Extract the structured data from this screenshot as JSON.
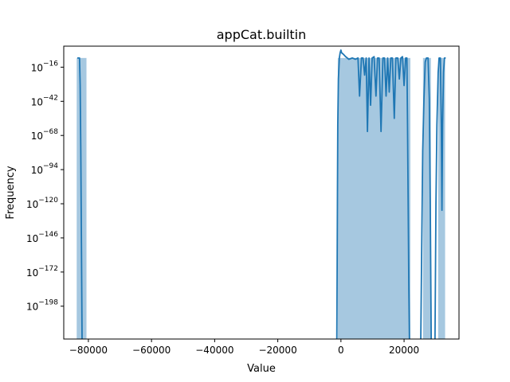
{
  "chart_data": {
    "type": "area",
    "title": "appCat.builtin",
    "xlabel": "Value",
    "ylabel": "Frequency",
    "xlim": [
      -87800,
      37400
    ],
    "y_log_exponent_range": [
      -223,
      0
    ],
    "y_scale": "log",
    "x_ticks": [
      {
        "value": -80000,
        "label": "−80000"
      },
      {
        "value": -60000,
        "label": "−60000"
      },
      {
        "value": -40000,
        "label": "−40000"
      },
      {
        "value": -20000,
        "label": "−20000"
      },
      {
        "value": 0,
        "label": "0"
      },
      {
        "value": 20000,
        "label": "20000"
      }
    ],
    "y_ticks": [
      {
        "exp": -16,
        "base": "10",
        "sup": "−16"
      },
      {
        "exp": -42,
        "base": "10",
        "sup": "−42"
      },
      {
        "exp": -68,
        "base": "10",
        "sup": "−68"
      },
      {
        "exp": -94,
        "base": "10",
        "sup": "−94"
      },
      {
        "exp": -120,
        "base": "10",
        "sup": "−120"
      },
      {
        "exp": -146,
        "base": "10",
        "sup": "−146"
      },
      {
        "exp": -172,
        "base": "10",
        "sup": "−172"
      },
      {
        "exp": -198,
        "base": "10",
        "sup": "−198"
      }
    ],
    "histogram": {
      "color": "#a6c8e0",
      "bins": [
        {
          "x0": -83700,
          "x1": -80600,
          "exp": -9
        },
        {
          "x0": -1000,
          "x1": 22000,
          "exp": -9
        },
        {
          "x0": 26000,
          "x1": 28500,
          "exp": -9
        },
        {
          "x0": 30800,
          "x1": 33000,
          "exp": -9
        }
      ]
    },
    "kde": {
      "color": "#1f77b4",
      "segments": [
        [
          [
            -83500,
            -9
          ],
          [
            -82800,
            -9
          ],
          [
            -82600,
            -30
          ],
          [
            -82400,
            -80
          ],
          [
            -82200,
            -150
          ],
          [
            -82000,
            -223
          ]
        ],
        [
          [
            -1300,
            -223
          ],
          [
            -1200,
            -170
          ],
          [
            -1100,
            -110
          ],
          [
            -1000,
            -60
          ],
          [
            -800,
            -25
          ],
          [
            -500,
            -9
          ],
          [
            -250,
            -5
          ],
          [
            0,
            -3
          ],
          [
            200,
            -5
          ],
          [
            700,
            -6
          ],
          [
            1500,
            -8
          ],
          [
            2500,
            -10
          ],
          [
            3600,
            -9
          ],
          [
            4600,
            -10
          ],
          [
            5400,
            -9
          ],
          [
            5900,
            -38
          ],
          [
            6500,
            -9
          ],
          [
            7000,
            -9
          ],
          [
            7500,
            -22
          ],
          [
            8000,
            -9
          ],
          [
            8400,
            -65
          ],
          [
            8900,
            -9
          ],
          [
            9400,
            -45
          ],
          [
            9900,
            -9
          ],
          [
            10500,
            -8
          ],
          [
            11100,
            -38
          ],
          [
            11600,
            -9
          ],
          [
            12100,
            -9
          ],
          [
            12700,
            -65
          ],
          [
            13300,
            -9
          ],
          [
            13800,
            -9
          ],
          [
            14300,
            -38
          ],
          [
            14800,
            -9
          ],
          [
            15300,
            -35
          ],
          [
            15800,
            -9
          ],
          [
            16300,
            -9
          ],
          [
            16900,
            -55
          ],
          [
            17400,
            -9
          ],
          [
            18000,
            -9
          ],
          [
            18500,
            -25
          ],
          [
            19000,
            -9
          ],
          [
            19500,
            -8
          ],
          [
            20000,
            -30
          ],
          [
            20500,
            -9
          ],
          [
            20900,
            -9
          ],
          [
            21100,
            -60
          ],
          [
            21300,
            -120
          ],
          [
            21500,
            -180
          ],
          [
            21700,
            -223
          ]
        ],
        [
          [
            25300,
            -223
          ],
          [
            25600,
            -150
          ],
          [
            25900,
            -80
          ],
          [
            26300,
            -40
          ],
          [
            26700,
            -12
          ],
          [
            27100,
            -9
          ],
          [
            27600,
            -9
          ],
          [
            28000,
            -40
          ],
          [
            28300,
            -120
          ],
          [
            28600,
            -223
          ]
        ],
        [
          [
            29800,
            -223
          ],
          [
            30100,
            -120
          ],
          [
            30400,
            -60
          ],
          [
            30800,
            -20
          ],
          [
            31100,
            -9
          ],
          [
            31500,
            -9
          ],
          [
            31800,
            -60
          ],
          [
            32000,
            -125
          ],
          [
            32200,
            -60
          ],
          [
            32500,
            -20
          ],
          [
            32800,
            -9
          ],
          [
            33200,
            -9
          ]
        ]
      ]
    }
  }
}
